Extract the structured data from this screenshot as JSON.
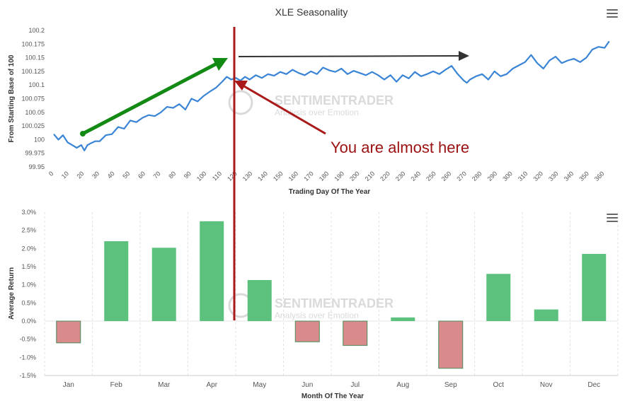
{
  "chart_data": [
    {
      "type": "line",
      "title": "XLE Seasonality",
      "xlabel": "Trading Day Of The Year",
      "ylabel": "From Starting Base of 100",
      "xlim": [
        0,
        365
      ],
      "ylim": [
        99.95,
        100.2
      ],
      "x_ticks": [
        0,
        10,
        20,
        30,
        40,
        50,
        60,
        70,
        80,
        90,
        100,
        110,
        120,
        130,
        140,
        150,
        160,
        170,
        180,
        190,
        200,
        210,
        220,
        230,
        240,
        250,
        260,
        270,
        280,
        290,
        300,
        310,
        320,
        330,
        340,
        350,
        360
      ],
      "y_ticks": [
        {
          "value": 99.95,
          "label": "99.95"
        },
        {
          "value": 99.975,
          "label": "99.975"
        },
        {
          "value": 100,
          "label": "100"
        },
        {
          "value": 100.025,
          "label": "100.025"
        },
        {
          "value": 100.05,
          "label": "100.05"
        },
        {
          "value": 100.075,
          "label": "100.075"
        },
        {
          "value": 100.1,
          "label": "100.1"
        },
        {
          "value": 100.125,
          "label": "100.125"
        },
        {
          "value": 100.15,
          "label": "100.15"
        },
        {
          "value": 100.175,
          "label": "100.175"
        },
        {
          "value": 100.2,
          "label": "100.2"
        }
      ],
      "grid": false,
      "line_color": "#3a84d6",
      "series": [
        {
          "x": [
            0,
            3,
            6,
            9,
            12,
            15,
            18,
            20,
            22,
            24,
            27,
            30,
            34,
            38,
            42,
            46,
            50,
            54,
            58,
            62,
            66,
            70,
            74,
            78,
            82,
            86,
            90,
            94,
            98,
            102,
            106,
            110,
            113,
            116,
            119,
            122,
            125,
            128,
            132,
            136,
            140,
            144,
            148,
            152,
            156,
            160,
            164,
            168,
            172,
            176,
            180,
            184,
            188,
            192,
            196,
            200,
            204,
            208,
            212,
            216,
            220,
            224,
            228,
            232,
            236,
            240,
            244,
            248,
            252,
            256,
            260,
            264,
            268,
            270,
            272,
            276,
            280,
            284,
            288,
            292,
            296,
            300,
            304,
            308,
            312,
            316,
            320,
            324,
            328,
            332,
            336,
            340,
            344,
            348,
            352,
            356,
            360,
            363
          ],
          "y": [
            100.01,
            100.0,
            100.008,
            99.995,
            99.99,
            99.985,
            99.99,
            99.98,
            99.99,
            99.993,
            99.997,
            99.997,
            100.008,
            100.01,
            100.023,
            100.02,
            100.035,
            100.032,
            100.04,
            100.045,
            100.043,
            100.05,
            100.06,
            100.058,
            100.065,
            100.055,
            100.075,
            100.07,
            100.08,
            100.088,
            100.095,
            100.106,
            100.115,
            100.11,
            100.113,
            100.108,
            100.115,
            100.11,
            100.118,
            100.113,
            100.12,
            100.117,
            100.124,
            100.12,
            100.128,
            100.122,
            100.118,
            100.125,
            100.12,
            100.132,
            100.127,
            100.124,
            100.13,
            100.12,
            100.126,
            100.122,
            100.118,
            100.124,
            100.118,
            100.11,
            100.118,
            100.106,
            100.118,
            100.112,
            100.124,
            100.116,
            100.12,
            100.125,
            100.12,
            100.128,
            100.135,
            100.12,
            100.108,
            100.104,
            100.11,
            100.116,
            100.12,
            100.11,
            100.125,
            100.116,
            100.12,
            100.13,
            100.136,
            100.142,
            100.155,
            100.14,
            100.13,
            100.145,
            100.152,
            100.14,
            100.145,
            100.148,
            100.142,
            100.15,
            100.165,
            100.17,
            100.168,
            100.18
          ]
        }
      ]
    },
    {
      "type": "bar",
      "xlabel": "Month Of The Year",
      "ylabel": "Average Return",
      "categories": [
        "Jan",
        "Feb",
        "Mar",
        "Apr",
        "May",
        "Jun",
        "Jul",
        "Aug",
        "Sep",
        "Oct",
        "Nov",
        "Dec"
      ],
      "values": [
        -0.6,
        2.2,
        2.02,
        2.75,
        1.13,
        -0.57,
        -0.67,
        0.1,
        -1.3,
        1.3,
        0.32,
        1.85
      ],
      "ylim": [
        -1.5,
        3.0
      ],
      "y_ticks": [
        {
          "value": 3.0,
          "label": "3.0%"
        },
        {
          "value": 2.5,
          "label": "2.5%"
        },
        {
          "value": 2.0,
          "label": "2.0%"
        },
        {
          "value": 1.5,
          "label": "1.5%"
        },
        {
          "value": 1.0,
          "label": "1.0%"
        },
        {
          "value": 0.5,
          "label": "0.5%"
        },
        {
          "value": 0.0,
          "label": "0.0%"
        },
        {
          "value": -0.5,
          "label": "-0.5%"
        },
        {
          "value": -1.0,
          "label": "-1.0%"
        },
        {
          "value": -1.5,
          "label": "-1.5%"
        }
      ],
      "grid": "vertical-dashed",
      "positive_color": "#5bc17c",
      "negative_color": "#d98a8a"
    }
  ],
  "annotation": {
    "text": "You are almost here",
    "marker_color": "#aa1a1a",
    "up_arrow_color": "#138a13",
    "flat_arrow_color": "#333333"
  },
  "watermark": {
    "brand": "SENTIMENTRADER",
    "tagline": "Analysis over Emotion",
    "color": "#dadada"
  },
  "icons": {
    "top_menu": "hamburger-menu-icon",
    "bottom_menu": "hamburger-menu-icon"
  }
}
